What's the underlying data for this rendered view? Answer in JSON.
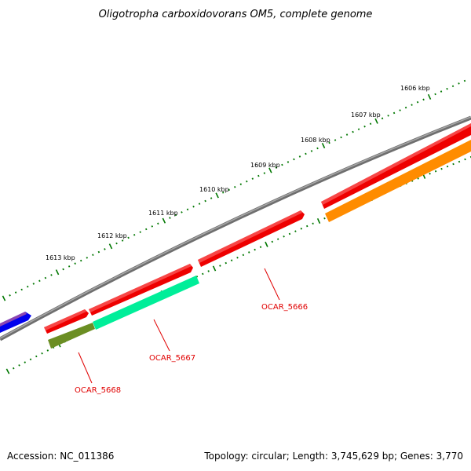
{
  "title": "Oligotropha carboxidovorans OM5, complete genome",
  "accession": "Accession: NC_011386",
  "summary": "Topology: circular; Length: 3,745,629 bp; Genes: 3,770",
  "colors": {
    "backbone": "#808080",
    "tick": "#007700",
    "label": "#e00000"
  },
  "ticks": [
    {
      "label": "1606 kbp"
    },
    {
      "label": "1607 kbp"
    },
    {
      "label": "1608 kbp"
    },
    {
      "label": "1609 kbp"
    },
    {
      "label": "1610 kbp"
    },
    {
      "label": "1611 kbp"
    },
    {
      "label": "1612 kbp"
    },
    {
      "label": "1613 kbp"
    }
  ],
  "genes": [
    {
      "name": "",
      "color": "#0000ee"
    },
    {
      "name": "",
      "color": "#ee0000"
    },
    {
      "name": "",
      "color": "#ee0000"
    },
    {
      "name": "",
      "color": "#ee0000"
    },
    {
      "name": "",
      "color": "#ee0000"
    },
    {
      "name": "",
      "color": "#ee0000"
    },
    {
      "name": "OCAR_5668",
      "color": "#6b8e23"
    },
    {
      "name": "OCAR_5667",
      "color": "#00ee99"
    },
    {
      "name": "",
      "color": "#ff8c00"
    }
  ],
  "labels": [
    {
      "text": "OCAR_5666"
    },
    {
      "text": "OCAR_5667"
    },
    {
      "text": "OCAR_5668"
    }
  ]
}
